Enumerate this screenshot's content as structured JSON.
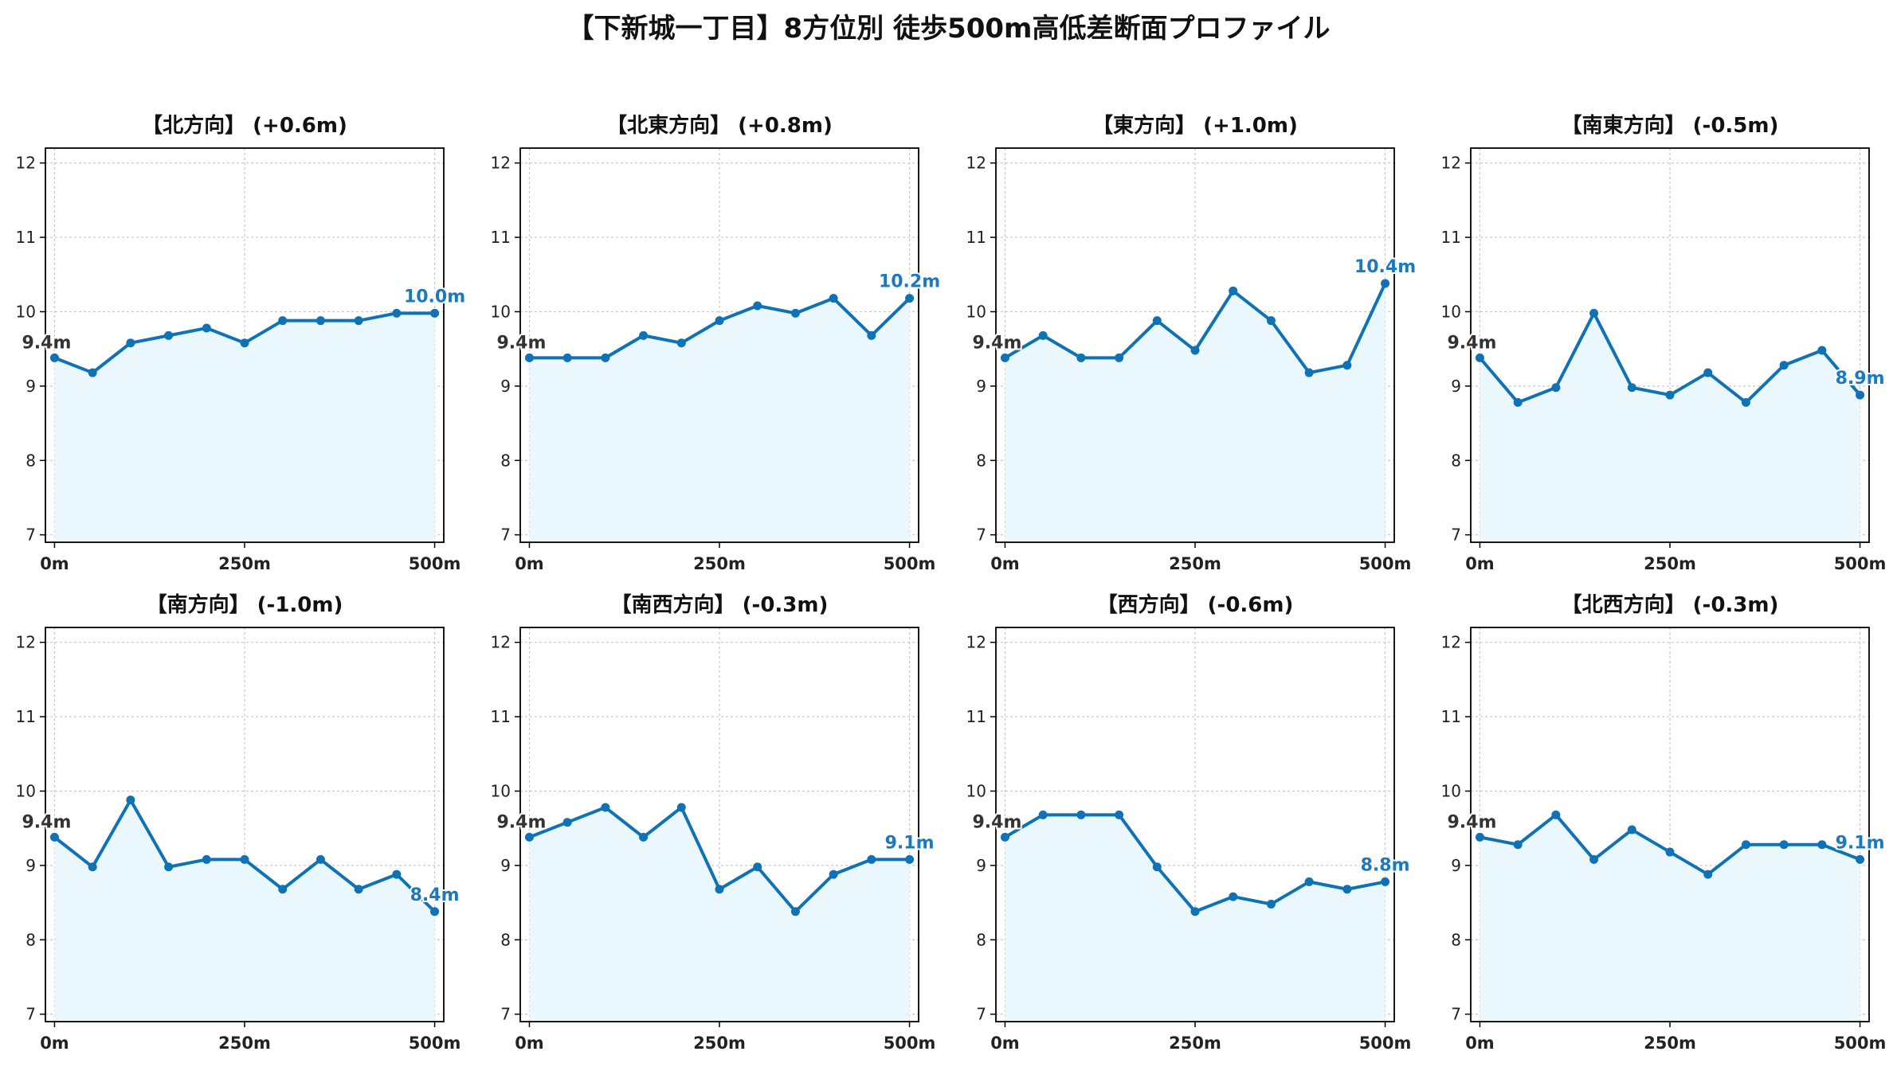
{
  "title": "【下新城一丁目】8方位別 徒歩500m高低差断面プロファイル",
  "style": {
    "line_color": "#0e72b4",
    "fill_color": "#eaf7fc",
    "start_label_color": "#333333",
    "end_label_color": "#1a7abf",
    "grid_color": "#c8c8c8"
  },
  "chart_data": [
    {
      "type": "line",
      "title": "【北方向】 (+0.6m)",
      "xticks": [
        "0m",
        "250m",
        "500m"
      ],
      "yticks": [
        "7",
        "8",
        "9",
        "10",
        "11",
        "12"
      ],
      "ylim": [
        6.9,
        12.2
      ],
      "xlim": [
        -12,
        512
      ],
      "grid": true,
      "x": [
        0,
        50,
        100,
        150,
        200,
        250,
        300,
        350,
        400,
        450,
        500
      ],
      "values": [
        9.38,
        9.18,
        9.58,
        9.68,
        9.78,
        9.58,
        9.88,
        9.88,
        9.88,
        9.98,
        9.98
      ],
      "start_label": "9.4m",
      "end_label": "10.0m"
    },
    {
      "type": "line",
      "title": "【北東方向】 (+0.8m)",
      "xticks": [
        "0m",
        "250m",
        "500m"
      ],
      "yticks": [
        "7",
        "8",
        "9",
        "10",
        "11",
        "12"
      ],
      "ylim": [
        6.9,
        12.2
      ],
      "xlim": [
        -12,
        512
      ],
      "grid": true,
      "x": [
        0,
        50,
        100,
        150,
        200,
        250,
        300,
        350,
        400,
        450,
        500
      ],
      "values": [
        9.38,
        9.38,
        9.38,
        9.68,
        9.58,
        9.88,
        10.08,
        9.98,
        10.18,
        9.68,
        10.18
      ],
      "start_label": "9.4m",
      "end_label": "10.2m"
    },
    {
      "type": "line",
      "title": "【東方向】 (+1.0m)",
      "xticks": [
        "0m",
        "250m",
        "500m"
      ],
      "yticks": [
        "7",
        "8",
        "9",
        "10",
        "11",
        "12"
      ],
      "ylim": [
        6.9,
        12.2
      ],
      "xlim": [
        -12,
        512
      ],
      "grid": true,
      "x": [
        0,
        50,
        100,
        150,
        200,
        250,
        300,
        350,
        400,
        450,
        500
      ],
      "values": [
        9.38,
        9.68,
        9.38,
        9.38,
        9.88,
        9.48,
        10.28,
        9.88,
        9.18,
        9.28,
        10.38
      ],
      "start_label": "9.4m",
      "end_label": "10.4m"
    },
    {
      "type": "line",
      "title": "【南東方向】 (-0.5m)",
      "xticks": [
        "0m",
        "250m",
        "500m"
      ],
      "yticks": [
        "7",
        "8",
        "9",
        "10",
        "11",
        "12"
      ],
      "ylim": [
        6.9,
        12.2
      ],
      "xlim": [
        -12,
        512
      ],
      "grid": true,
      "x": [
        0,
        50,
        100,
        150,
        200,
        250,
        300,
        350,
        400,
        450,
        500
      ],
      "values": [
        9.38,
        8.78,
        8.98,
        9.98,
        8.98,
        8.88,
        9.18,
        8.78,
        9.28,
        9.48,
        8.88
      ],
      "start_label": "9.4m",
      "end_label": "8.9m"
    },
    {
      "type": "line",
      "title": "【南方向】 (-1.0m)",
      "xticks": [
        "0m",
        "250m",
        "500m"
      ],
      "yticks": [
        "7",
        "8",
        "9",
        "10",
        "11",
        "12"
      ],
      "ylim": [
        6.9,
        12.2
      ],
      "xlim": [
        -12,
        512
      ],
      "grid": true,
      "x": [
        0,
        50,
        100,
        150,
        200,
        250,
        300,
        350,
        400,
        450,
        500
      ],
      "values": [
        9.38,
        8.98,
        9.88,
        8.98,
        9.08,
        9.08,
        8.68,
        9.08,
        8.68,
        8.88,
        8.38
      ],
      "start_label": "9.4m",
      "end_label": "8.4m"
    },
    {
      "type": "line",
      "title": "【南西方向】 (-0.3m)",
      "xticks": [
        "0m",
        "250m",
        "500m"
      ],
      "yticks": [
        "7",
        "8",
        "9",
        "10",
        "11",
        "12"
      ],
      "ylim": [
        6.9,
        12.2
      ],
      "xlim": [
        -12,
        512
      ],
      "grid": true,
      "x": [
        0,
        50,
        100,
        150,
        200,
        250,
        300,
        350,
        400,
        450,
        500
      ],
      "values": [
        9.38,
        9.58,
        9.78,
        9.38,
        9.78,
        8.68,
        8.98,
        8.38,
        8.88,
        9.08,
        9.08
      ],
      "start_label": "9.4m",
      "end_label": "9.1m"
    },
    {
      "type": "line",
      "title": "【西方向】 (-0.6m)",
      "xticks": [
        "0m",
        "250m",
        "500m"
      ],
      "yticks": [
        "7",
        "8",
        "9",
        "10",
        "11",
        "12"
      ],
      "ylim": [
        6.9,
        12.2
      ],
      "xlim": [
        -12,
        512
      ],
      "grid": true,
      "x": [
        0,
        50,
        100,
        150,
        200,
        250,
        300,
        350,
        400,
        450,
        500
      ],
      "values": [
        9.38,
        9.68,
        9.68,
        9.68,
        8.98,
        8.38,
        8.58,
        8.48,
        8.78,
        8.68,
        8.78
      ],
      "start_label": "9.4m",
      "end_label": "8.8m"
    },
    {
      "type": "line",
      "title": "【北西方向】 (-0.3m)",
      "xticks": [
        "0m",
        "250m",
        "500m"
      ],
      "yticks": [
        "7",
        "8",
        "9",
        "10",
        "11",
        "12"
      ],
      "ylim": [
        6.9,
        12.2
      ],
      "xlim": [
        -12,
        512
      ],
      "grid": true,
      "x": [
        0,
        50,
        100,
        150,
        200,
        250,
        300,
        350,
        400,
        450,
        500
      ],
      "values": [
        9.38,
        9.28,
        9.68,
        9.08,
        9.48,
        9.18,
        8.88,
        9.28,
        9.28,
        9.28,
        9.08
      ],
      "start_label": "9.4m",
      "end_label": "9.1m"
    }
  ]
}
